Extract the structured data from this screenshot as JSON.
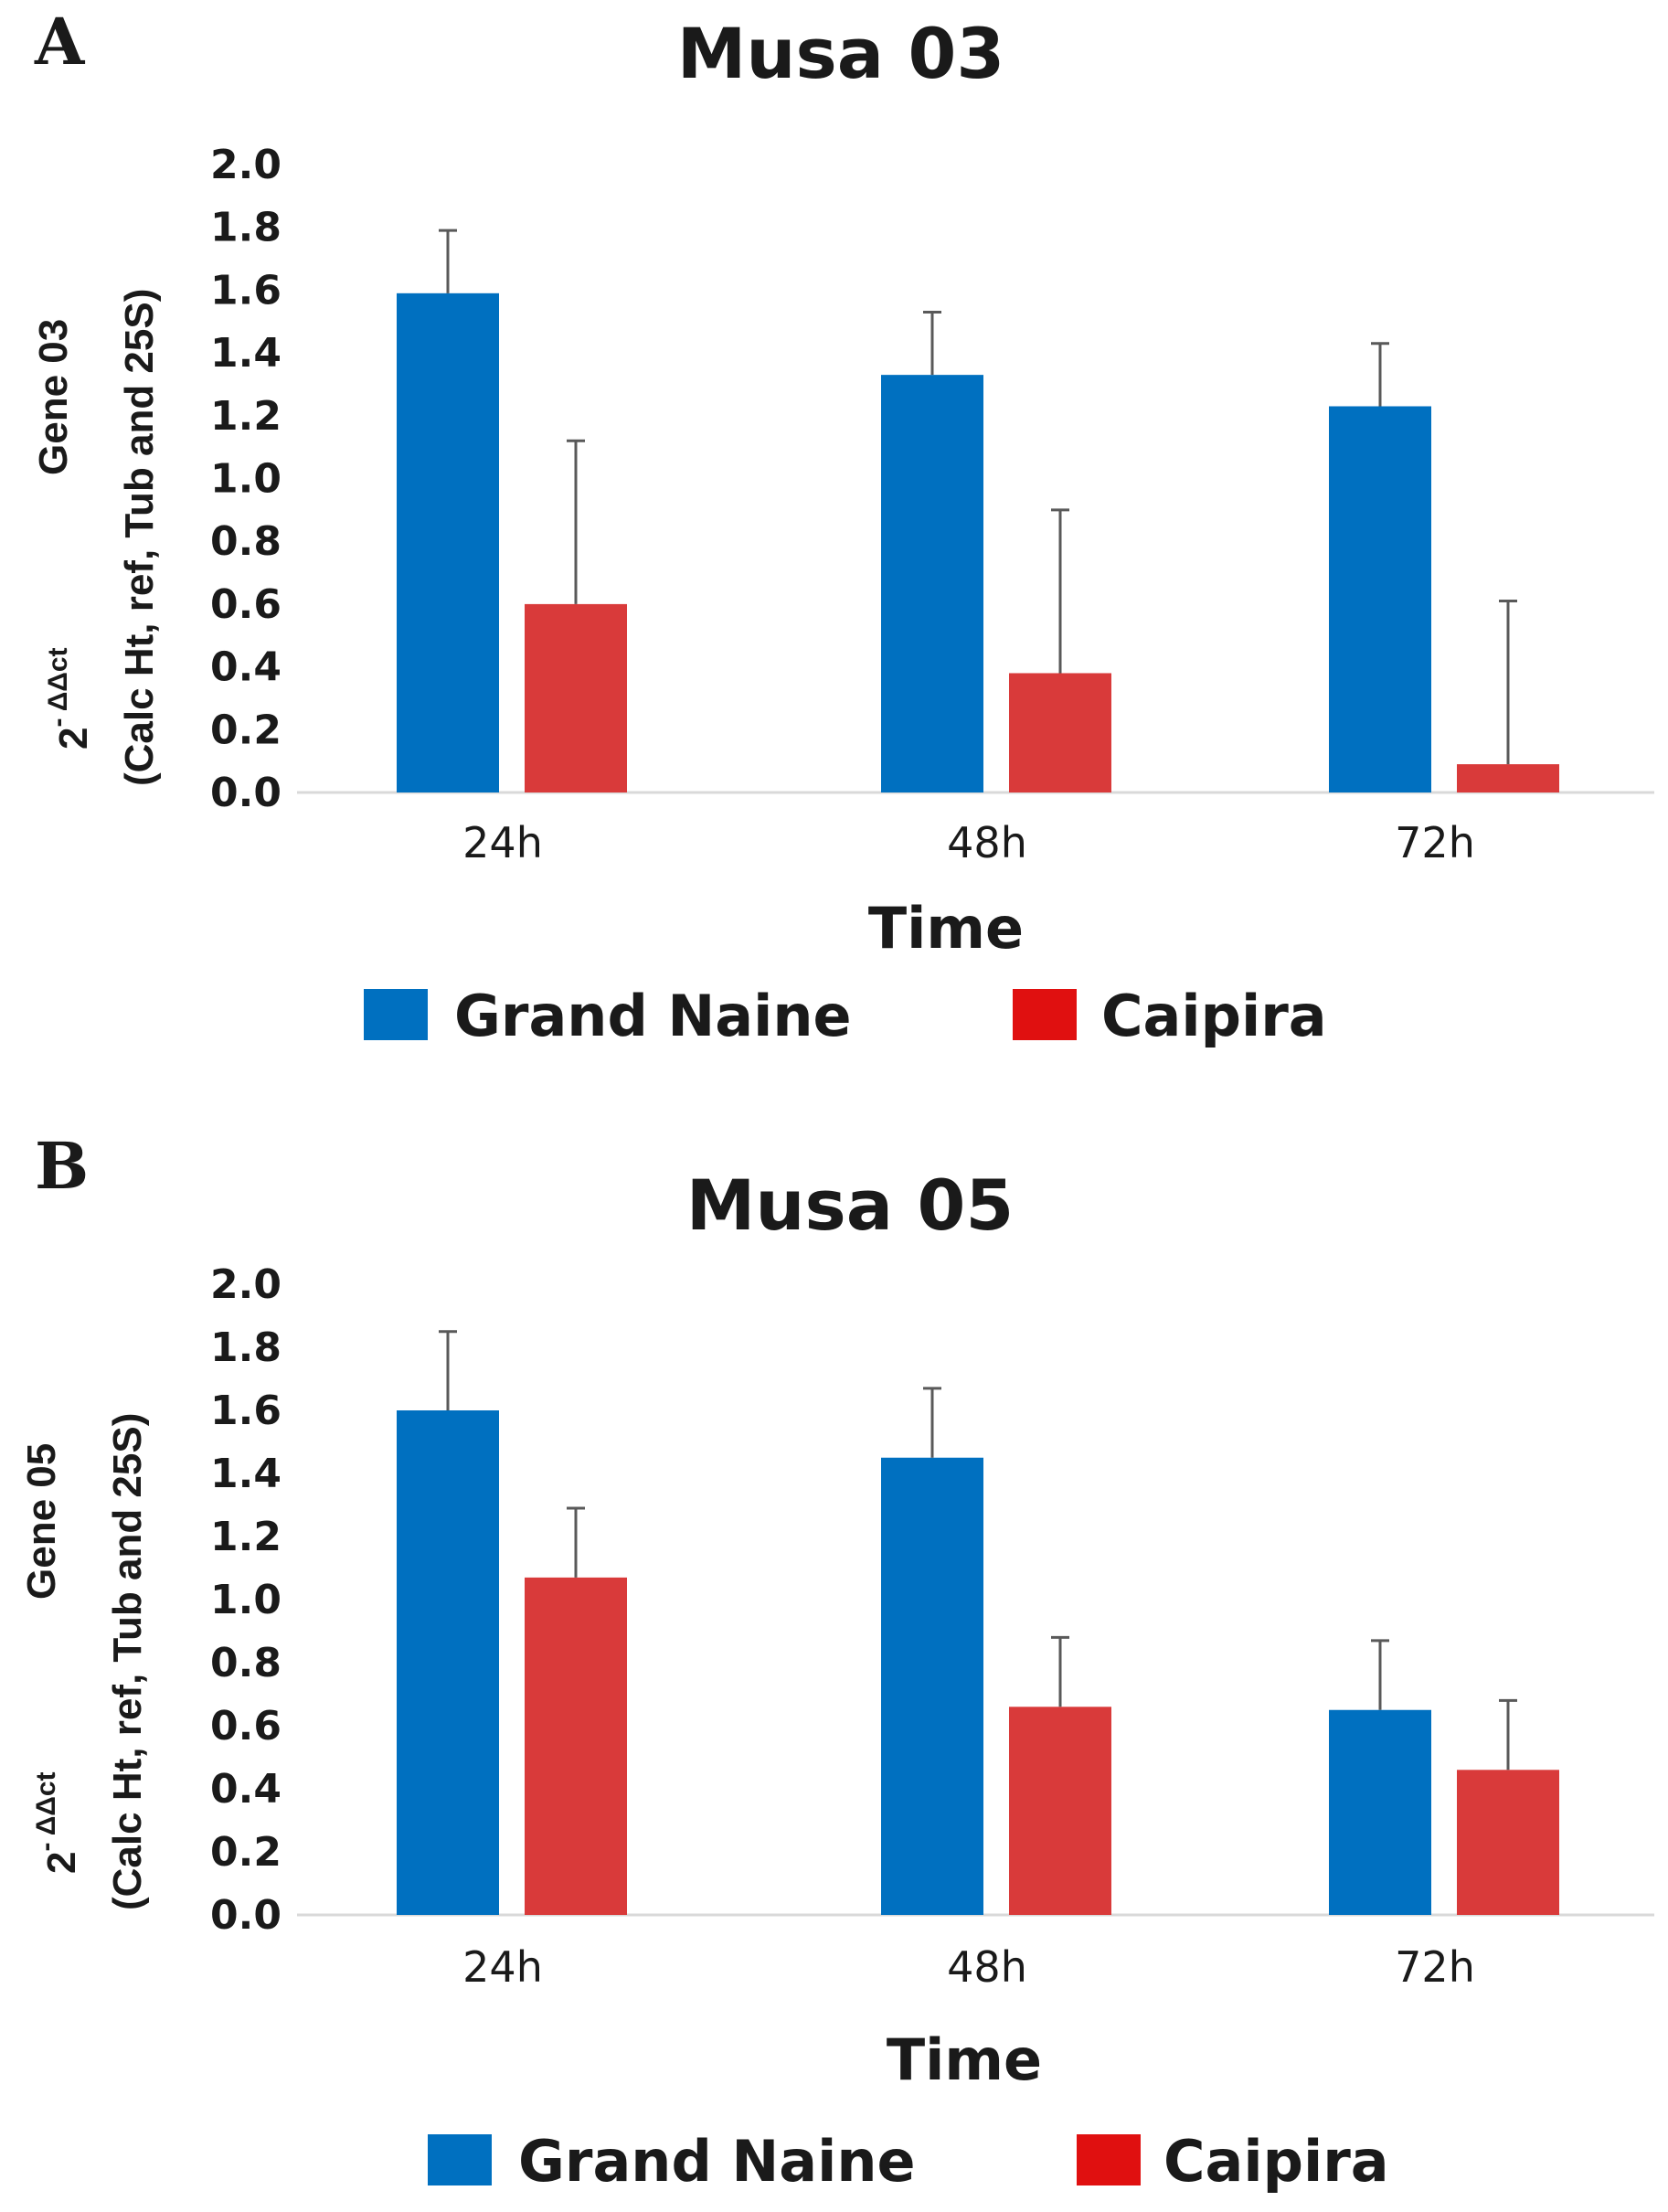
{
  "chart_data": [
    {
      "panel": "A",
      "type": "bar",
      "title": "Musa 03",
      "xlabel": "Time",
      "ylabel": {
        "expr_base": "2",
        "expr_exp": "- ΔΔct",
        "gene": "Gene 03",
        "calc": "(Calc Ht, ref, Tub and 25S)"
      },
      "ylim": [
        0,
        2.0
      ],
      "yticks": [
        "0.0",
        "0.2",
        "0.4",
        "0.6",
        "0.8",
        "1.0",
        "1.2",
        "1.4",
        "1.6",
        "1.8",
        "2.0"
      ],
      "categories": [
        "24h",
        "48h",
        "72h"
      ],
      "series": [
        {
          "name": "Grand Naine",
          "color": "#0070c0",
          "values": [
            1.59,
            1.33,
            1.23
          ],
          "errors": [
            0.2,
            0.2,
            0.2
          ]
        },
        {
          "name": "Caipira",
          "color": "#d93a3a",
          "legend_color": "#e01010",
          "values": [
            0.6,
            0.38,
            0.09
          ],
          "errors": [
            0.52,
            0.52,
            0.52
          ]
        }
      ]
    },
    {
      "panel": "B",
      "type": "bar",
      "title": "Musa 05",
      "xlabel": "Time",
      "ylabel": {
        "expr_base": "2",
        "expr_exp": "- ΔΔct",
        "gene": "Gene 05",
        "calc": "(Calc Ht, ref, Tub and 25S)"
      },
      "ylim": [
        0,
        2.0
      ],
      "yticks": [
        "0.0",
        "0.2",
        "0.4",
        "0.6",
        "0.8",
        "1.0",
        "1.2",
        "1.4",
        "1.6",
        "1.8",
        "2.0"
      ],
      "categories": [
        "24h",
        "48h",
        "72h"
      ],
      "series": [
        {
          "name": "Grand Naine",
          "color": "#0070c0",
          "values": [
            1.6,
            1.45,
            0.65
          ],
          "errors": [
            0.25,
            0.22,
            0.22
          ]
        },
        {
          "name": "Caipira",
          "color": "#d93a3a",
          "legend_color": "#e01010",
          "values": [
            1.07,
            0.66,
            0.46
          ],
          "errors": [
            0.22,
            0.22,
            0.22
          ]
        }
      ]
    }
  ]
}
